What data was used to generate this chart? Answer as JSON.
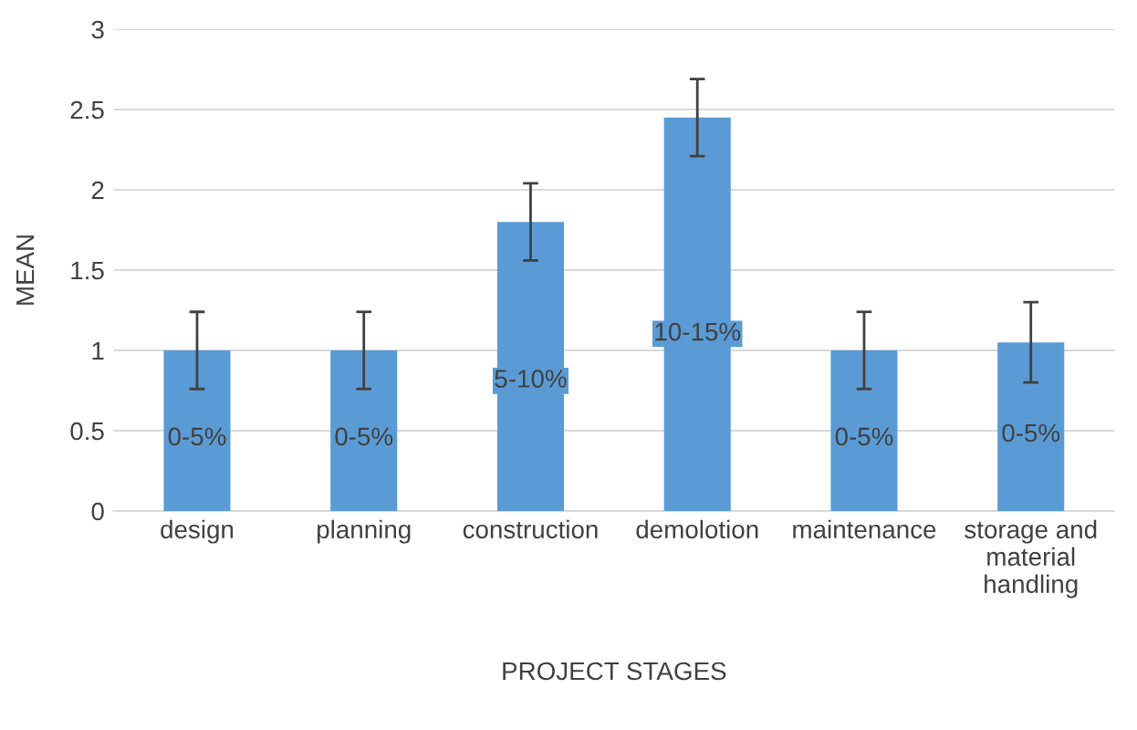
{
  "chart_data": {
    "type": "bar",
    "xlabel": "PROJECT STAGES",
    "ylabel": "MEAN",
    "categories": [
      "design",
      "planning",
      "construction",
      "demolotion",
      "maintenance",
      "storage and material handling"
    ],
    "values": [
      1.0,
      1.0,
      1.8,
      2.45,
      1.0,
      1.05
    ],
    "errors": [
      0.24,
      0.24,
      0.24,
      0.24,
      0.24,
      0.25
    ],
    "annotations": [
      "0-5%",
      "0-5%",
      "5-10%",
      "10-15%",
      "0-5%",
      "0-5%"
    ],
    "color": "#5b9bd5",
    "ylim": [
      0,
      3
    ],
    "yticks": [
      0,
      0.5,
      1,
      1.5,
      2,
      2.5,
      3
    ],
    "grid": "y",
    "legend": false
  }
}
